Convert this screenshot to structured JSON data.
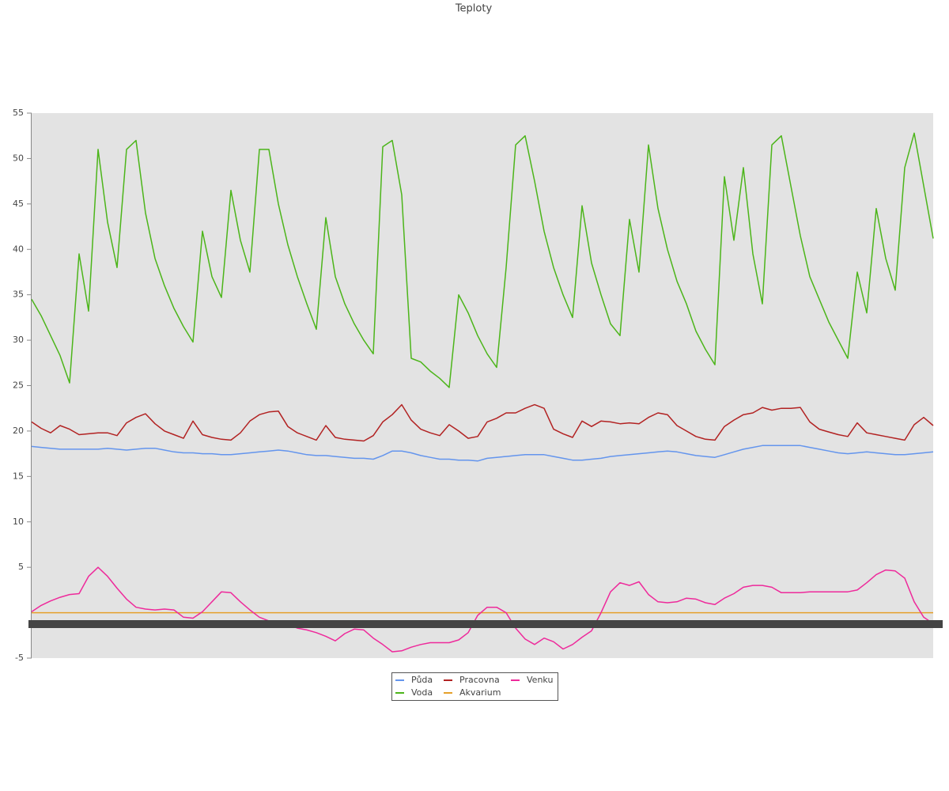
{
  "chart_data": {
    "type": "line",
    "title": "Teploty",
    "categories": [
      null,
      null,
      null,
      null,
      null,
      null,
      null,
      null,
      null,
      null,
      null,
      null,
      null,
      null,
      null,
      null,
      null,
      null,
      null,
      null,
      null,
      null,
      null,
      null,
      null,
      null,
      null,
      null,
      null,
      null,
      null,
      null,
      null,
      null,
      null,
      null,
      null,
      null,
      null,
      null,
      null,
      null,
      null,
      null,
      null,
      null,
      null,
      null,
      null,
      null,
      null,
      null,
      null,
      null,
      null,
      null,
      null,
      null,
      null,
      null,
      null,
      null,
      null,
      null,
      null,
      null,
      null,
      null,
      null,
      null,
      null,
      null,
      null,
      null,
      null,
      null,
      null,
      null,
      null,
      null,
      null,
      null,
      null,
      null,
      null,
      null,
      null,
      null,
      null,
      null,
      null,
      null,
      null,
      null,
      null,
      null
    ],
    "ylim": [
      -5,
      55
    ],
    "yticks": [
      -5,
      5,
      10,
      15,
      20,
      25,
      30,
      35,
      40,
      45,
      50,
      55
    ],
    "legend": "bottom",
    "series": [
      {
        "name": "Půda",
        "color": "#6495ed",
        "values": [
          18.3,
          18.2,
          18.1,
          18.0,
          18.0,
          18.0,
          18.0,
          18.0,
          18.1,
          18.0,
          17.9,
          18.0,
          18.1,
          18.1,
          17.9,
          17.7,
          17.6,
          17.6,
          17.5,
          17.5,
          17.4,
          17.4,
          17.5,
          17.6,
          17.7,
          17.8,
          17.9,
          17.8,
          17.6,
          17.4,
          17.3,
          17.3,
          17.2,
          17.1,
          17.0,
          17.0,
          16.9,
          17.3,
          17.8,
          17.8,
          17.6,
          17.3,
          17.1,
          16.9,
          16.9,
          16.8,
          16.8,
          16.7,
          17.0,
          17.1,
          17.2,
          17.3,
          17.4,
          17.4,
          17.4,
          17.2,
          17.0,
          16.8,
          16.8,
          16.9,
          17.0,
          17.2,
          17.3,
          17.4,
          17.5,
          17.6,
          17.7,
          17.8,
          17.7,
          17.5,
          17.3,
          17.2,
          17.1,
          17.4,
          17.7,
          18.0,
          18.2,
          18.4,
          18.4,
          18.4,
          18.4,
          18.4,
          18.2,
          18.0,
          17.8,
          17.6,
          17.5,
          17.6,
          17.7,
          17.6,
          17.5,
          17.4,
          17.4,
          17.5,
          17.6,
          17.7
        ]
      },
      {
        "name": "Voda",
        "color": "#4cb51a",
        "values": [
          34.5,
          32.7,
          30.5,
          28.3,
          25.3,
          39.5,
          33.2,
          51,
          43,
          38,
          51,
          52,
          44,
          39,
          36,
          33.5,
          31.5,
          29.8,
          42,
          37,
          34.7,
          46.5,
          41,
          37.5,
          51,
          51,
          45,
          40.5,
          37,
          34,
          31.2,
          43.5,
          37,
          34,
          31.8,
          30,
          28.5,
          51.3,
          52,
          46,
          28,
          27.6,
          26.6,
          25.8,
          24.8,
          35,
          33,
          30.5,
          28.5,
          27,
          38,
          51.5,
          52.5,
          47.5,
          42,
          38,
          35,
          32.5,
          44.8,
          38.5,
          35,
          31.8,
          30.5,
          43.3,
          37.5,
          51.5,
          44.5,
          40,
          36.5,
          34,
          31,
          29,
          27.3,
          48,
          41,
          49,
          39.5,
          34,
          51.5,
          52.5,
          47,
          41.5,
          37,
          34.5,
          32,
          30,
          28,
          37.5,
          33,
          44.5,
          39,
          35.5,
          49,
          52.8,
          47,
          41.2
        ]
      },
      {
        "name": "Pracovna",
        "color": "#b22222",
        "values": [
          21,
          20.3,
          19.8,
          20.6,
          20.2,
          19.6,
          19.7,
          19.8,
          19.8,
          19.5,
          20.9,
          21.5,
          21.9,
          20.8,
          20,
          19.6,
          19.2,
          21.1,
          19.6,
          19.3,
          19.1,
          19,
          19.8,
          21.1,
          21.8,
          22.1,
          22.2,
          20.5,
          19.8,
          19.4,
          19,
          20.6,
          19.3,
          19.1,
          19,
          18.9,
          19.5,
          21,
          21.8,
          22.9,
          21.2,
          20.2,
          19.8,
          19.5,
          20.7,
          20,
          19.2,
          19.4,
          21,
          21.4,
          22,
          22,
          22.5,
          22.9,
          22.5,
          20.2,
          19.7,
          19.3,
          21.1,
          20.5,
          21.1,
          21,
          20.8,
          20.9,
          20.8,
          21.5,
          22,
          21.8,
          20.6,
          20,
          19.4,
          19.1,
          19,
          20.5,
          21.2,
          21.8,
          22,
          22.6,
          22.3,
          22.5,
          22.5,
          22.6,
          21,
          20.2,
          19.9,
          19.6,
          19.4,
          20.9,
          19.8,
          19.6,
          19.4,
          19.2,
          19,
          20.7,
          21.5,
          20.6
        ]
      },
      {
        "name": "Akvarium",
        "color": "#e5a02a",
        "values": [
          0,
          0,
          0,
          0,
          0,
          0,
          0,
          0,
          0,
          0,
          0,
          0,
          0,
          0,
          0,
          0,
          0,
          0,
          0,
          0,
          0,
          0,
          0,
          0,
          0,
          0,
          0,
          0,
          0,
          0,
          0,
          0,
          0,
          0,
          0,
          0,
          0,
          0,
          0,
          0,
          0,
          0,
          0,
          0,
          0,
          0,
          0,
          0,
          0,
          0,
          0,
          0,
          0,
          0,
          0,
          0,
          0,
          0,
          0,
          0,
          0,
          0,
          0,
          0,
          0,
          0,
          0,
          0,
          0,
          0,
          0,
          0,
          0,
          0,
          0,
          0,
          0,
          0,
          0,
          0,
          0,
          0,
          0,
          0,
          0,
          0,
          0,
          0,
          0,
          0,
          0,
          0,
          0,
          0,
          0,
          0
        ]
      },
      {
        "name": "Venku",
        "color": "#ee2a9b",
        "values": [
          0.1,
          0.8,
          1.3,
          1.7,
          2,
          2.1,
          4,
          5,
          4,
          2.7,
          1.5,
          0.6,
          0.4,
          0.3,
          0.4,
          0.3,
          -0.5,
          -0.6,
          0.1,
          1.2,
          2.3,
          2.2,
          1.2,
          0.3,
          -0.5,
          -0.9,
          -1.1,
          -1.3,
          -1.7,
          -1.9,
          -2.2,
          -2.6,
          -3.1,
          -2.3,
          -1.8,
          -1.9,
          -2.8,
          -3.5,
          -4.3,
          -4.2,
          -3.8,
          -3.5,
          -3.3,
          -3.3,
          -3.3,
          -3,
          -2.2,
          -0.3,
          0.6,
          0.6,
          0,
          -1.7,
          -2.9,
          -3.5,
          -2.8,
          -3.2,
          -4,
          -3.5,
          -2.7,
          -2,
          0,
          2.3,
          3.3,
          3,
          3.4,
          2,
          1.2,
          1.1,
          1.2,
          1.6,
          1.5,
          1.1,
          0.9,
          1.6,
          2.1,
          2.8,
          3,
          3,
          2.8,
          2.2,
          2.2,
          2.2,
          2.3,
          2.3,
          2.3,
          2.3,
          2.3,
          2.5,
          3.3,
          4.2,
          4.7,
          4.6,
          3.8,
          1.2,
          -0.5,
          -1.2
        ]
      }
    ]
  }
}
